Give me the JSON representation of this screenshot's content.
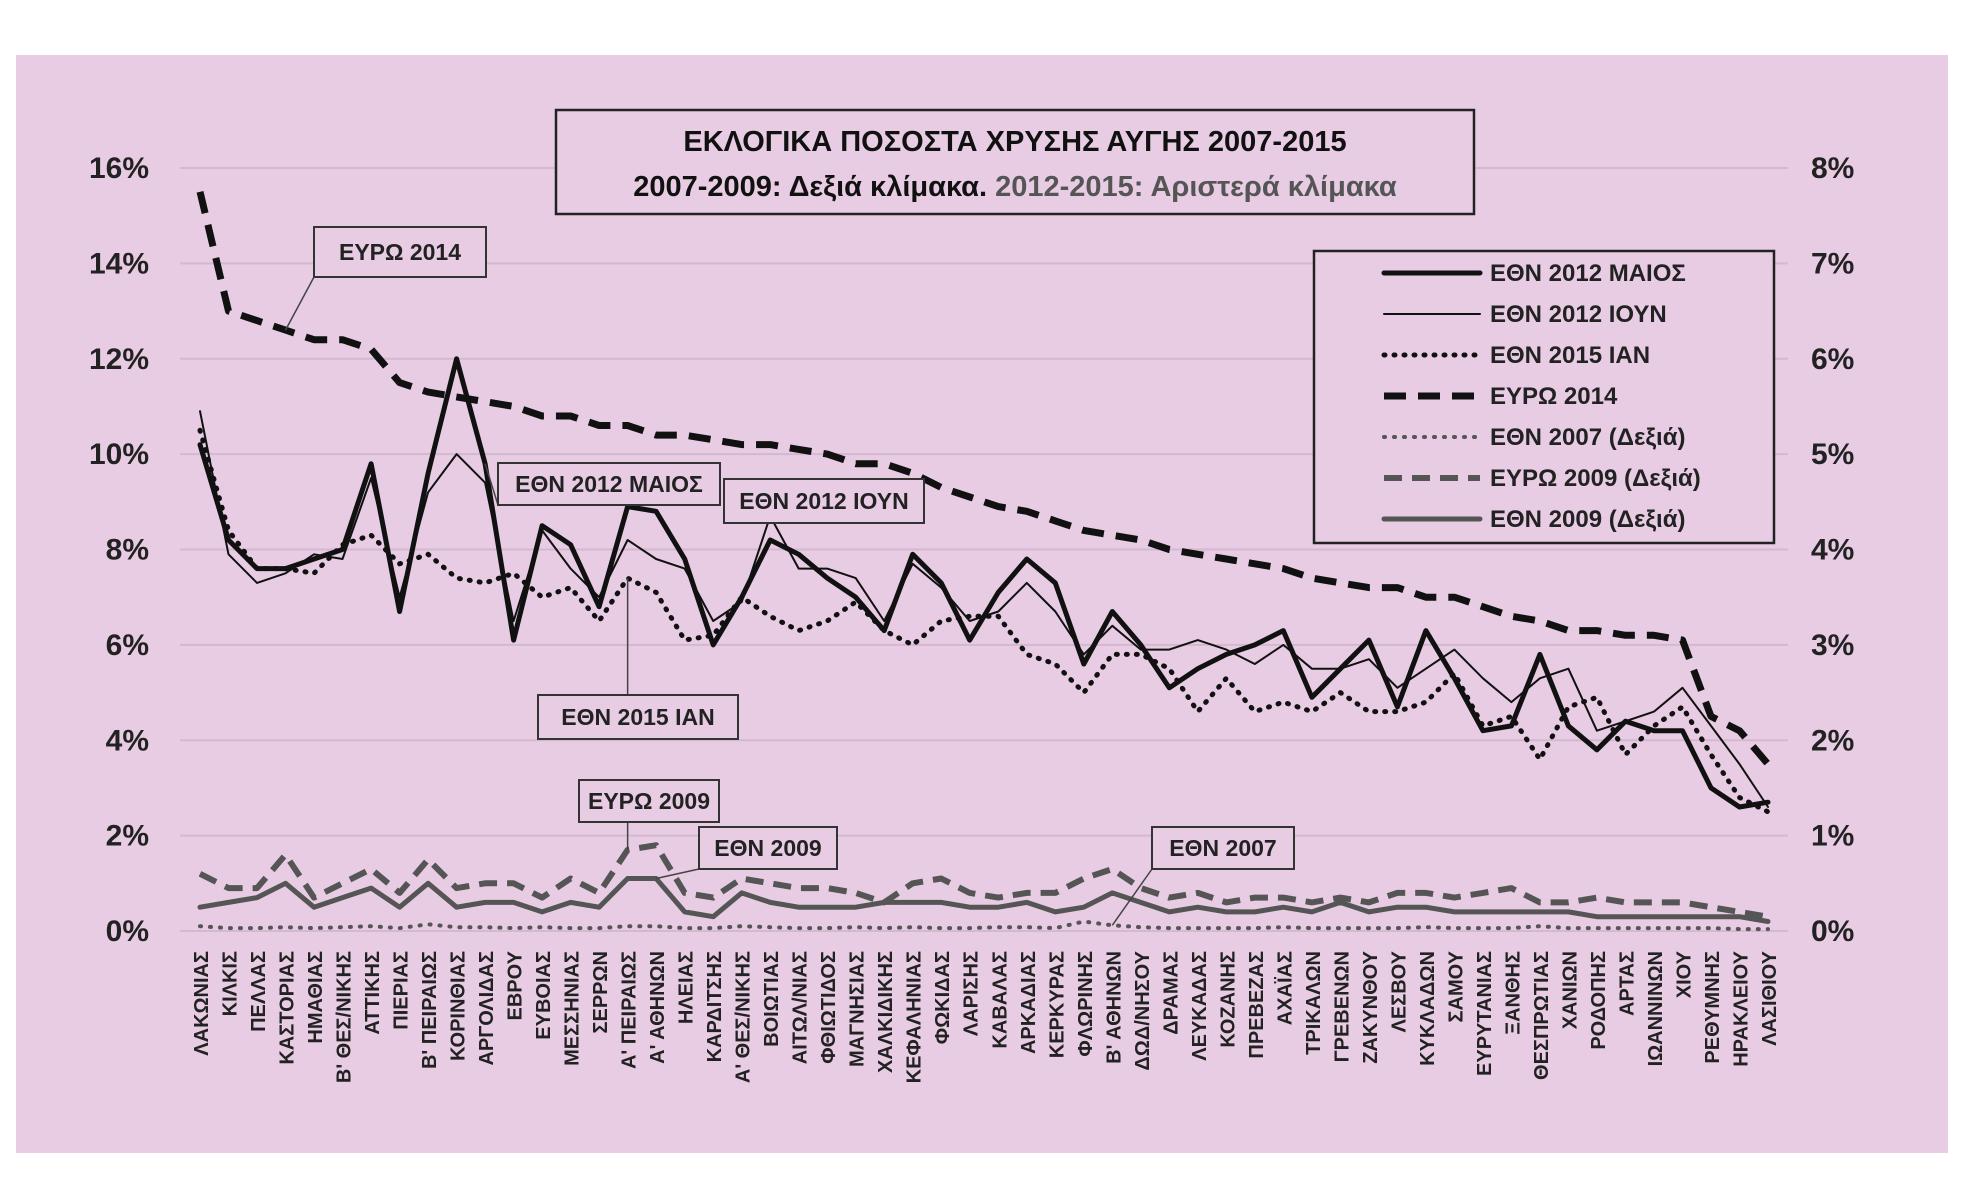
{
  "chart_data": {
    "type": "line",
    "title": "ΕΚΛΟΓΙΚΑ ΠΟΣΟΣΤΑ ΧΡΥΣΗΣ ΑΥΓΗΣ 2007-2015",
    "subtitle_part1": "2007-2009: Δεξιά κλίμακα.",
    "subtitle_part2": "2012-2015: Αριστερά κλίμακα",
    "colors": {
      "black": "#111111",
      "gray": "#555555",
      "part2_text": "#555555"
    },
    "y_left": {
      "ylim": [
        0,
        16
      ],
      "ticks": [
        0,
        2,
        4,
        6,
        8,
        10,
        12,
        14,
        16
      ],
      "tick_labels": [
        "0%",
        "2%",
        "4%",
        "6%",
        "8%",
        "10%",
        "12%",
        "14%",
        "16%"
      ]
    },
    "y_right": {
      "ylim": [
        0,
        8
      ],
      "ticks": [
        0,
        1,
        2,
        3,
        4,
        5,
        6,
        7,
        8
      ],
      "tick_labels": [
        "0%",
        "1%",
        "2%",
        "3%",
        "4%",
        "5%",
        "6%",
        "7%",
        "8%"
      ]
    },
    "grid": true,
    "legend_position": "top-right",
    "categories": [
      "ΛΑΚΩΝΙΑΣ",
      "ΚΙΛΚΙΣ",
      "ΠΕΛΛΑΣ",
      "ΚΑΣΤΟΡΙΑΣ",
      "ΗΜΑΘΙΑΣ",
      "Β' ΘΕΣ/ΝΙΚΗΣ",
      "ΑΤΤΙΚΗΣ",
      "ΠΙΕΡΙΑΣ",
      "Β' ΠΕΙΡΑΙΩΣ",
      "ΚΟΡΙΝΘΙΑΣ",
      "ΑΡΓΟΛΙΔΑΣ",
      "ΕΒΡΟΥ",
      "ΕΥΒΟΙΑΣ",
      "ΜΕΣΣΗΝΙΑΣ",
      "ΣΕΡΡΩΝ",
      "Α' ΠΕΙΡΑΙΩΣ",
      "Α' ΑΘΗΝΩΝ",
      "ΗΛΕΙΑΣ",
      "ΚΑΡΔΙΤΣΗΣ",
      "Α' ΘΕΣ/ΝΙΚΗΣ",
      "ΒΟΙΩΤΙΑΣ",
      "ΑΙΤΩΛ/ΝΙΑΣ",
      "ΦΘΙΩΤΙΔΟΣ",
      "ΜΑΓΝΗΣΙΑΣ",
      "ΧΑΛΚΙΔΙΚΗΣ",
      "ΚΕΦΑΛΗΝΙΑΣ",
      "ΦΩΚΙΔΑΣ",
      "ΛΑΡΙΣΗΣ",
      "ΚΑΒΑΛΑΣ",
      "ΑΡΚΑΔΙΑΣ",
      "ΚΕΡΚΥΡΑΣ",
      "ΦΛΩΡΙΝΗΣ",
      "Β' ΑΘΗΝΩΝ",
      "ΔΩΔ/ΝΗΣΟΥ",
      "ΔΡΑΜΑΣ",
      "ΛΕΥΚΑΔΑΣ",
      "ΚΟΖΑΝΗΣ",
      "ΠΡΕΒΕΖΑΣ",
      "ΑΧΑΪΑΣ",
      "ΤΡΙΚΑΛΩΝ",
      "ΓΡΕΒΕΝΩΝ",
      "ΖΑΚΥΝΘΟΥ",
      "ΛΕΣΒΟΥ",
      "ΚΥΚΛΑΔΩΝ",
      "ΣΑΜΟΥ",
      "ΕΥΡΥΤΑΝΙΑΣ",
      "ΞΑΝΘΗΣ",
      "ΘΕΣΠΡΩΤΙΑΣ",
      "ΧΑΝΙΩΝ",
      "ΡΟΔΟΠΗΣ",
      "ΑΡΤΑΣ",
      "ΙΩΑΝΝΙΝΩΝ",
      "ΧΙΟΥ",
      "ΡΕΘΥΜΝΗΣ",
      "ΗΡΑΚΛΕΙΟΥ",
      "ΛΑΣΙΘΙΟΥ"
    ],
    "series": [
      {
        "name": "ΕΘΝ 2012 ΜΑΙΟΣ",
        "axis": "left",
        "style": "thick-solid",
        "color": "#111111",
        "values": [
          10.2,
          8.2,
          7.6,
          7.6,
          7.8,
          8.0,
          9.8,
          6.7,
          9.6,
          12.0,
          9.8,
          6.1,
          8.5,
          8.1,
          6.8,
          8.9,
          8.8,
          7.8,
          6.0,
          7.0,
          8.2,
          7.9,
          7.4,
          7.0,
          6.3,
          7.9,
          7.3,
          6.1,
          7.1,
          7.8,
          7.3,
          5.6,
          6.7,
          6.0,
          5.1,
          5.5,
          5.8,
          6.0,
          6.3,
          4.9,
          5.5,
          6.1,
          4.7,
          6.3,
          5.3,
          4.2,
          4.3,
          5.8,
          4.3,
          3.8,
          4.4,
          4.2,
          4.2,
          3.0,
          2.6,
          2.7
        ]
      },
      {
        "name": "ΕΘΝ 2012 ΙΟΥΝ",
        "axis": "left",
        "style": "thin-solid",
        "color": "#111111",
        "values": [
          10.9,
          7.9,
          7.3,
          7.5,
          7.9,
          7.8,
          9.5,
          7.0,
          9.2,
          10.0,
          9.4,
          6.5,
          8.4,
          7.6,
          7.0,
          8.2,
          7.8,
          7.6,
          6.5,
          6.9,
          8.7,
          7.6,
          7.6,
          7.4,
          6.5,
          7.7,
          7.2,
          6.5,
          6.7,
          7.3,
          6.7,
          5.8,
          6.4,
          5.9,
          5.9,
          6.1,
          5.9,
          5.6,
          6.0,
          5.5,
          5.5,
          5.7,
          5.1,
          5.5,
          5.9,
          5.3,
          4.8,
          5.3,
          5.5,
          4.2,
          4.4,
          4.6,
          5.1,
          4.3,
          3.5,
          2.6
        ]
      },
      {
        "name": "ΕΘΝ 2015 ΙΑΝ",
        "axis": "left",
        "style": "dotted",
        "color": "#111111",
        "values": [
          10.5,
          8.4,
          7.6,
          7.6,
          7.5,
          8.1,
          8.3,
          7.7,
          7.9,
          7.4,
          7.3,
          7.5,
          7.0,
          7.2,
          6.5,
          7.4,
          7.1,
          6.1,
          6.2,
          7.0,
          6.6,
          6.3,
          6.5,
          6.9,
          6.3,
          6.0,
          6.5,
          6.6,
          6.6,
          5.8,
          5.6,
          5.0,
          5.8,
          5.8,
          5.5,
          4.6,
          5.3,
          4.6,
          4.8,
          4.6,
          5.0,
          4.6,
          4.6,
          4.8,
          5.4,
          4.3,
          4.5,
          3.6,
          4.7,
          4.9,
          3.7,
          4.3,
          4.7,
          3.7,
          2.8,
          2.5
        ]
      },
      {
        "name": "ΕΥΡΩ 2014",
        "axis": "left",
        "style": "dashed-thick",
        "color": "#111111",
        "values": [
          15.5,
          13.0,
          12.8,
          12.6,
          12.4,
          12.4,
          12.2,
          11.5,
          11.3,
          11.2,
          11.1,
          11.0,
          10.8,
          10.8,
          10.6,
          10.6,
          10.4,
          10.4,
          10.3,
          10.2,
          10.2,
          10.1,
          10.0,
          9.8,
          9.8,
          9.6,
          9.3,
          9.1,
          8.9,
          8.8,
          8.6,
          8.4,
          8.3,
          8.2,
          8.0,
          7.9,
          7.8,
          7.7,
          7.6,
          7.4,
          7.3,
          7.2,
          7.2,
          7.0,
          7.0,
          6.8,
          6.6,
          6.5,
          6.3,
          6.3,
          6.2,
          6.2,
          6.1,
          4.5,
          4.2,
          3.5
        ]
      },
      {
        "name": "ΕΘΝ 2007 (Δεξιά)",
        "axis": "right",
        "style": "dotted-gray",
        "color": "#555555",
        "values": [
          0.05,
          0.03,
          0.03,
          0.04,
          0.03,
          0.04,
          0.05,
          0.03,
          0.07,
          0.04,
          0.04,
          0.03,
          0.04,
          0.03,
          0.03,
          0.05,
          0.05,
          0.03,
          0.03,
          0.05,
          0.04,
          0.03,
          0.03,
          0.04,
          0.03,
          0.04,
          0.03,
          0.03,
          0.04,
          0.04,
          0.03,
          0.1,
          0.06,
          0.04,
          0.03,
          0.03,
          0.03,
          0.03,
          0.04,
          0.03,
          0.03,
          0.03,
          0.03,
          0.04,
          0.03,
          0.03,
          0.03,
          0.05,
          0.03,
          0.03,
          0.03,
          0.03,
          0.03,
          0.03,
          0.02,
          0.02
        ]
      },
      {
        "name": "ΕΥΡΩ 2009  (Δεξιά)",
        "axis": "right",
        "style": "dashed-gray",
        "color": "#555555",
        "values": [
          0.6,
          0.45,
          0.45,
          0.8,
          0.35,
          0.5,
          0.65,
          0.4,
          0.75,
          0.45,
          0.5,
          0.5,
          0.35,
          0.55,
          0.4,
          0.85,
          0.9,
          0.4,
          0.35,
          0.55,
          0.5,
          0.45,
          0.45,
          0.4,
          0.3,
          0.5,
          0.55,
          0.4,
          0.35,
          0.4,
          0.4,
          0.55,
          0.65,
          0.45,
          0.35,
          0.4,
          0.3,
          0.35,
          0.35,
          0.3,
          0.35,
          0.3,
          0.4,
          0.4,
          0.35,
          0.4,
          0.45,
          0.3,
          0.3,
          0.35,
          0.3,
          0.3,
          0.3,
          0.25,
          0.2,
          0.15
        ]
      },
      {
        "name": "ΕΘΝ 2009  (Δεξιά)",
        "axis": "right",
        "style": "solid-gray",
        "color": "#555555",
        "values": [
          0.25,
          0.3,
          0.35,
          0.5,
          0.25,
          0.35,
          0.45,
          0.25,
          0.5,
          0.25,
          0.3,
          0.3,
          0.2,
          0.3,
          0.25,
          0.55,
          0.55,
          0.2,
          0.15,
          0.4,
          0.3,
          0.25,
          0.25,
          0.25,
          0.3,
          0.3,
          0.3,
          0.25,
          0.25,
          0.3,
          0.2,
          0.25,
          0.4,
          0.3,
          0.2,
          0.25,
          0.2,
          0.2,
          0.25,
          0.2,
          0.3,
          0.2,
          0.25,
          0.25,
          0.2,
          0.2,
          0.2,
          0.2,
          0.2,
          0.15,
          0.15,
          0.15,
          0.15,
          0.15,
          0.15,
          0.1
        ]
      }
    ],
    "annotations": [
      {
        "text": "ΕΥΡΩ 2014",
        "series_index": 3,
        "point_index": 3
      },
      {
        "text": "ΕΘΝ 2012 ΜΑΙΟΣ",
        "series_index": 0,
        "point_index": 10
      },
      {
        "text": "ΕΘΝ 2012 ΙΟΥΝ",
        "series_index": 1,
        "point_index": 20
      },
      {
        "text": "ΕΘΝ 2015 ΙΑΝ",
        "series_index": 2,
        "point_index": 15
      },
      {
        "text": "ΕΥΡΩ 2009",
        "series_index": 5,
        "point_index": 15
      },
      {
        "text": "ΕΘΝ 2009",
        "series_index": 6,
        "point_index": 16
      },
      {
        "text": "ΕΘΝ 2007",
        "series_index": 4,
        "point_index": 32
      }
    ]
  }
}
